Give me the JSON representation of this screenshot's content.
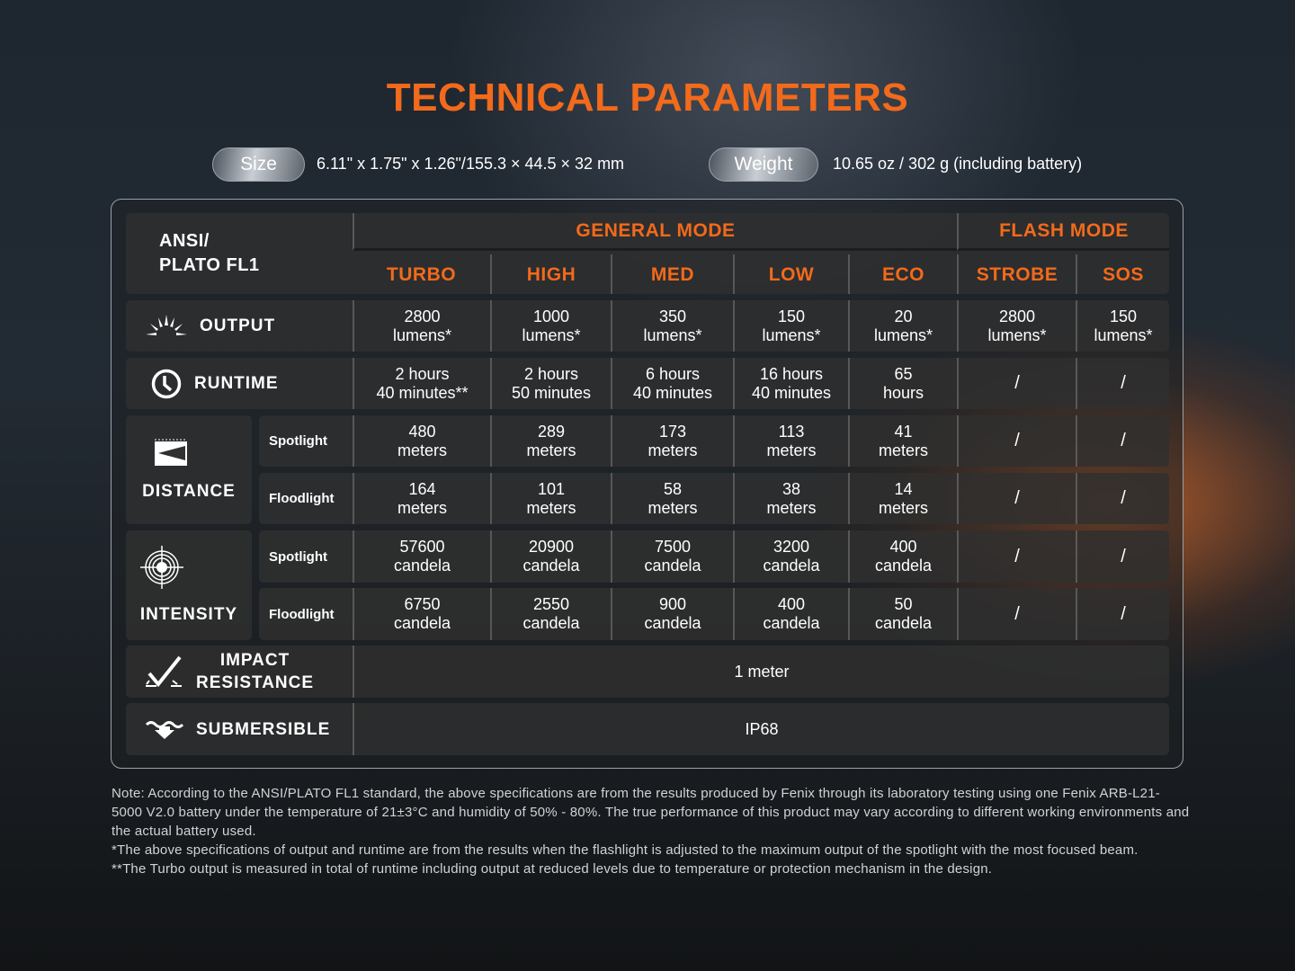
{
  "title": "TECHNICAL PARAMETERS",
  "size": {
    "label": "Size",
    "value": "6.11\" x 1.75\" x 1.26\"/155.3 × 44.5 × 32 mm"
  },
  "weight": {
    "label": "Weight",
    "value": "10.65 oz / 302 g (including battery)"
  },
  "accent_color": "#f26a1b",
  "table": {
    "corner": [
      "ANSI/",
      "PLATO FL1"
    ],
    "general_mode": "GENERAL MODE",
    "flash_mode": "FLASH MODE",
    "modes": [
      "TURBO",
      "HIGH",
      "MED",
      "LOW",
      "ECO",
      "STROBE",
      "SOS"
    ],
    "output": {
      "label": "OUTPUT",
      "icon": "light-burst-icon",
      "values": [
        [
          "2800",
          "lumens*"
        ],
        [
          "1000",
          "lumens*"
        ],
        [
          "350",
          "lumens*"
        ],
        [
          "150",
          "lumens*"
        ],
        [
          "20",
          "lumens*"
        ],
        [
          "2800",
          "lumens*"
        ],
        [
          "150",
          "lumens*"
        ]
      ]
    },
    "runtime": {
      "label": "RUNTIME",
      "icon": "clock-icon",
      "values": [
        [
          "2 hours",
          "40 minutes**"
        ],
        [
          "2 hours",
          "50 minutes"
        ],
        [
          "6 hours",
          "40 minutes"
        ],
        [
          "16 hours",
          "40 minutes"
        ],
        [
          "65",
          "hours"
        ],
        [
          "/",
          ""
        ],
        [
          "/",
          ""
        ]
      ]
    },
    "distance": {
      "label": "DISTANCE",
      "icon": "beam-distance-icon",
      "spotlight": {
        "label": "Spotlight",
        "values": [
          [
            "480",
            "meters"
          ],
          [
            "289",
            "meters"
          ],
          [
            "173",
            "meters"
          ],
          [
            "113",
            "meters"
          ],
          [
            "41",
            "meters"
          ],
          [
            "/",
            ""
          ],
          [
            "/",
            ""
          ]
        ]
      },
      "floodlight": {
        "label": "Floodlight",
        "values": [
          [
            "164",
            "meters"
          ],
          [
            "101",
            "meters"
          ],
          [
            "58",
            "meters"
          ],
          [
            "38",
            "meters"
          ],
          [
            "14",
            "meters"
          ],
          [
            "/",
            ""
          ],
          [
            "/",
            ""
          ]
        ]
      }
    },
    "intensity": {
      "label": "INTENSITY",
      "icon": "target-icon",
      "spotlight": {
        "label": "Spotlight",
        "values": [
          [
            "57600",
            "candela"
          ],
          [
            "20900",
            "candela"
          ],
          [
            "7500",
            "candela"
          ],
          [
            "3200",
            "candela"
          ],
          [
            "400",
            "candela"
          ],
          [
            "/",
            ""
          ],
          [
            "/",
            ""
          ]
        ]
      },
      "floodlight": {
        "label": "Floodlight",
        "values": [
          [
            "6750",
            "candela"
          ],
          [
            "2550",
            "candela"
          ],
          [
            "900",
            "candela"
          ],
          [
            "400",
            "candela"
          ],
          [
            "50",
            "candela"
          ],
          [
            "/",
            ""
          ],
          [
            "/",
            ""
          ]
        ]
      }
    },
    "impact": {
      "label": [
        "IMPACT",
        "RESISTANCE"
      ],
      "icon": "impact-check-icon",
      "value": "1 meter"
    },
    "submersible": {
      "label": "SUBMERSIBLE",
      "icon": "submersible-icon",
      "value": "IP68"
    }
  },
  "notes": [
    "Note:  According to the ANSI/PLATO FL1 standard, the above specifications are from the results produced by Fenix through its laboratory testing using one Fenix ARB-L21-5000 V2.0 battery under the temperature of 21±3°C and humidity of 50% - 80%. The true performance of this product may vary according to different working environments and the actual battery used.",
    "*The above specifications of output and runtime are from the results when the flashlight is adjusted to the maximum output of the spotlight with the most focused beam.",
    "**The Turbo output is measured in total of runtime including output at reduced levels due to temperature or protection mechanism in the design."
  ]
}
